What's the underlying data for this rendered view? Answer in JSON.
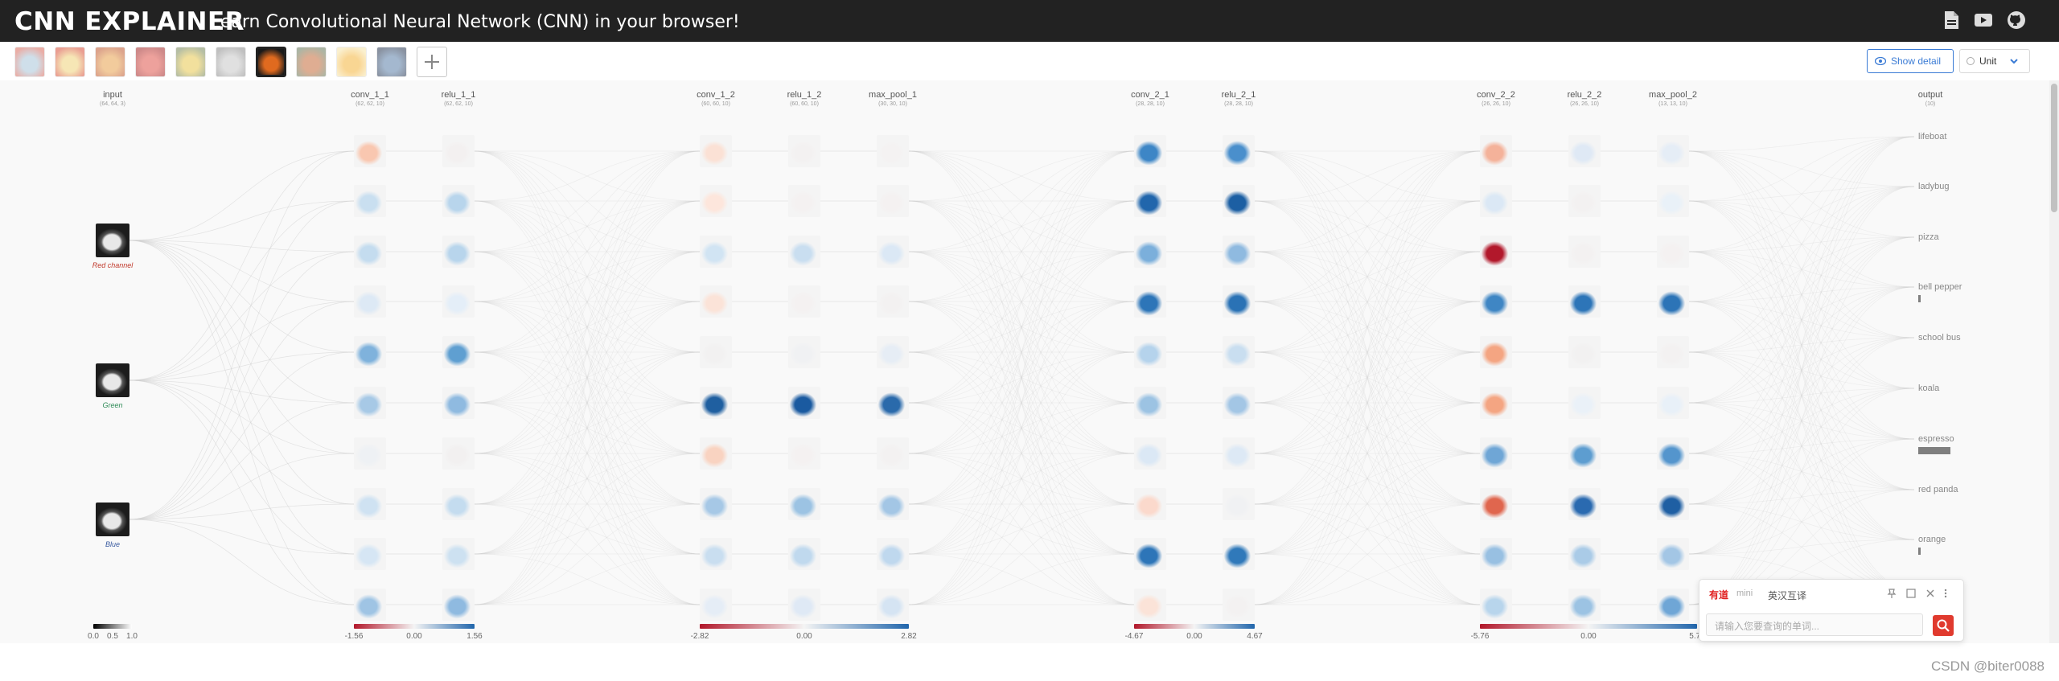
{
  "header": {
    "logo": "CNN EXPLAINER",
    "subtitle": "Learn Convolutional Neural Network (CNN) in your browser!",
    "icons": [
      "pdf-icon",
      "youtube-icon",
      "github-icon"
    ],
    "background": "#222222"
  },
  "toolbar": {
    "thumbnails": [
      {
        "name": "thumbnail-lifeboat",
        "colors": [
          "#a9c6d9",
          "#d96c5f"
        ]
      },
      {
        "name": "thumbnail-ladybug",
        "colors": [
          "#f0d27a",
          "#d94f3a"
        ]
      },
      {
        "name": "thumbnail-pizza",
        "colors": [
          "#e8a24d",
          "#c0592f"
        ]
      },
      {
        "name": "thumbnail-bell-pepper",
        "colors": [
          "#e0564c",
          "#a52a2a"
        ]
      },
      {
        "name": "thumbnail-school-bus",
        "colors": [
          "#e8c84e",
          "#7a8a5a"
        ]
      },
      {
        "name": "thumbnail-koala",
        "colors": [
          "#c8c8c8",
          "#8e8e8e"
        ]
      },
      {
        "name": "thumbnail-espresso",
        "colors": [
          "#e06a1f",
          "#1a1a1a"
        ]
      },
      {
        "name": "thumbnail-red-panda",
        "colors": [
          "#c56b3a",
          "#6a7a5a"
        ]
      },
      {
        "name": "thumbnail-orange",
        "colors": [
          "#f5b53c",
          "#f7e4a8"
        ]
      },
      {
        "name": "thumbnail-sport-car",
        "colors": [
          "#5b7fa8",
          "#2a3a55"
        ]
      }
    ],
    "selected_index": 6,
    "show_detail_label": "Show detail",
    "unit_label": "Unit",
    "accent": "#3a7bd5"
  },
  "layers": [
    {
      "name": "input",
      "dim": "(64, 64, 3)"
    },
    {
      "name": "conv_1_1",
      "dim": "(62, 62, 10)"
    },
    {
      "name": "relu_1_1",
      "dim": "(62, 62, 10)"
    },
    {
      "name": "conv_1_2",
      "dim": "(60, 60, 10)"
    },
    {
      "name": "relu_1_2",
      "dim": "(60, 60, 10)"
    },
    {
      "name": "max_pool_1",
      "dim": "(30, 30, 10)"
    },
    {
      "name": "conv_2_1",
      "dim": "(28, 28, 10)"
    },
    {
      "name": "relu_2_1",
      "dim": "(28, 28, 10)"
    },
    {
      "name": "conv_2_2",
      "dim": "(26, 26, 10)"
    },
    {
      "name": "relu_2_2",
      "dim": "(26, 26, 10)"
    },
    {
      "name": "max_pool_2",
      "dim": "(13, 13, 10)"
    },
    {
      "name": "output",
      "dim": "(10)"
    }
  ],
  "input_channels": [
    {
      "label": "Red channel",
      "color": "#c0392b"
    },
    {
      "label": "Green",
      "color": "#2e8b57"
    },
    {
      "label": "Blue",
      "color": "#3a5ba0"
    }
  ],
  "activations": [
    [
      "#f9c7b0",
      "#c9dff0",
      "#c4dcef",
      "#dde9f5",
      "#7fb2dc",
      "#a7c9e6",
      "#eef1f4",
      "#cfe2f2",
      "#d6e6f4",
      "#9fc4e4"
    ],
    [
      "#f3f0f0",
      "#b8d5ec",
      "#b8d5ec",
      "#e4eef8",
      "#5f9fd1",
      "#8fbae0",
      "#f2f0f0",
      "#c4dcef",
      "#cde1f1",
      "#8fbae0"
    ],
    [
      "#fbe1d5",
      "#fde6dc",
      "#d1e4f3",
      "#fbe3d8",
      "#f2f1f1",
      "#1f5fa0",
      "#f9d3c1",
      "#a6c8e6",
      "#c9def0",
      "#e5edf6"
    ],
    [
      "#f3f1f1",
      "#f4f1f1",
      "#c9def0",
      "#f4f1f1",
      "#f0f1f3",
      "#1a5aa0",
      "#f4f1f1",
      "#9cc3e3",
      "#c0d9ee",
      "#dfe9f5"
    ],
    [
      "#f4f2f2",
      "#f4f1f1",
      "#dbe8f5",
      "#f3f1f1",
      "#e6edf5",
      "#2a6aab",
      "#f3f1f1",
      "#a3c6e5",
      "#bfd8ee",
      "#d5e4f3"
    ],
    [
      "#3d86c6",
      "#2166ac",
      "#7bafdb",
      "#2d75b8",
      "#b5d3ec",
      "#9cc3e3",
      "#dbe8f5",
      "#fbd9cc",
      "#2d75b8",
      "#fbe3d8"
    ],
    [
      "#4a8fcc",
      "#1c5fa3",
      "#8fbae0",
      "#2a72b5",
      "#c9def0",
      "#a3c6e5",
      "#dde9f5",
      "#f0f1f3",
      "#3079ba",
      "#f3f1f1"
    ],
    [
      "#f4b29a",
      "#dbe8f5",
      "#b2182b",
      "#3f86c4",
      "#f4a582",
      "#f4a582",
      "#6fa6d6",
      "#e0664e",
      "#98c0e2",
      "#b8d5ec"
    ],
    [
      "#dfe9f5",
      "#f3f1f1",
      "#f3f1f1",
      "#2d75b8",
      "#f2f1f1",
      "#eaf1f8",
      "#5d9dd0",
      "#2a6ab0",
      "#aacbe7",
      "#9cc3e3"
    ],
    [
      "#e5edf6",
      "#e9f1f8",
      "#f4f1f1",
      "#2c74b7",
      "#f3f1f1",
      "#e8f0f8",
      "#5495cd",
      "#1f5fa3",
      "#a3c6e5",
      "#6fa6d6"
    ]
  ],
  "output_classes": [
    {
      "label": "lifeboat",
      "prob": 0.0
    },
    {
      "label": "ladybug",
      "prob": 0.0
    },
    {
      "label": "pizza",
      "prob": 0.0
    },
    {
      "label": "bell pepper",
      "prob": 0.05
    },
    {
      "label": "school bus",
      "prob": 0.0
    },
    {
      "label": "koala",
      "prob": 0.0
    },
    {
      "label": "espresso",
      "prob": 0.9
    },
    {
      "label": "red panda",
      "prob": 0.0
    },
    {
      "label": "orange",
      "prob": 0.05
    },
    {
      "label": "sport car",
      "prob": 0.0
    }
  ],
  "legends": [
    {
      "kind": "input",
      "min": "0.0",
      "mid": "0.5",
      "max": "1.0"
    },
    {
      "kind": "block",
      "min": "-1.56",
      "mid": "0.00",
      "max": "1.56"
    },
    {
      "kind": "block",
      "min": "-2.82",
      "mid": "0.00",
      "max": "2.82"
    },
    {
      "kind": "block",
      "min": "-4.67",
      "mid": "0.00",
      "max": "4.67"
    },
    {
      "kind": "block",
      "min": "-5.76",
      "mid": "0.00",
      "max": "5.76"
    }
  ],
  "dictionary_popup": {
    "brand": "有道",
    "tag": "mini",
    "mode": "英汉互译",
    "placeholder": "请输入您要查询的单词..."
  },
  "watermark": "CSDN @biter0088"
}
